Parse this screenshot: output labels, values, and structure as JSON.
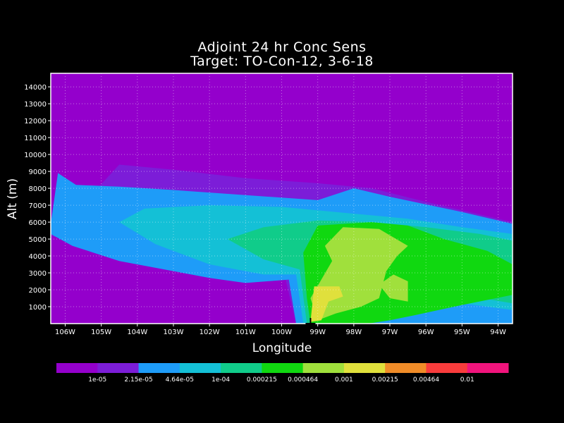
{
  "chart_data": {
    "type": "heatmap",
    "title": "Adjoint 24 hr Conc Sens",
    "subtitle": "Target: TO-Con-12, 3-6-18",
    "xlabel": "Longitude",
    "ylabel": "Alt (m)",
    "xlim": [
      -106.4,
      -93.6
    ],
    "ylim": [
      0,
      14800
    ],
    "grid": true,
    "x_ticks": [
      "106W",
      "105W",
      "104W",
      "103W",
      "102W",
      "101W",
      "100W",
      "99W",
      "98W",
      "97W",
      "96W",
      "95W",
      "94W"
    ],
    "y_ticks": [
      "1000",
      "2000",
      "3000",
      "4000",
      "5000",
      "6000",
      "7000",
      "8000",
      "9000",
      "10000",
      "11000",
      "12000",
      "13000",
      "14000"
    ],
    "target_marker": {
      "lon": -99.2,
      "alt": 0
    },
    "colorbar": {
      "colors": [
        "#9400CC",
        "#7C1DD8",
        "#1E9CF8",
        "#14C0D6",
        "#10CC8A",
        "#10D810",
        "#A0E03C",
        "#E0E03C",
        "#F08C28",
        "#F83C3C",
        "#F0147C"
      ],
      "labels": [
        "1e-05",
        "2.15e-05",
        "4.64e-05",
        "1e-04",
        "0.000215",
        "0.000464",
        "0.001",
        "0.00215",
        "0.00464",
        "0.01"
      ]
    },
    "contours": [
      {
        "level": "1e-05",
        "color": "#7C1DD8",
        "polygon": [
          [
            -106.4,
            5800
          ],
          [
            -105.8,
            6400
          ],
          [
            -104.5,
            9400
          ],
          [
            -103,
            9100
          ],
          [
            -101,
            8600
          ],
          [
            -99,
            8300
          ],
          [
            -97.5,
            8000
          ],
          [
            -96,
            7200
          ],
          [
            -95,
            6700
          ],
          [
            -94,
            6200
          ],
          [
            -93.6,
            6000
          ],
          [
            -93.6,
            0
          ],
          [
            -99.6,
            0
          ],
          [
            -99.9,
            2700
          ],
          [
            -101,
            2600
          ],
          [
            -102,
            2900
          ],
          [
            -103,
            3200
          ],
          [
            -104.5,
            3900
          ],
          [
            -105.5,
            4600
          ],
          [
            -106.4,
            5200
          ]
        ]
      },
      {
        "level": "2.15e-05",
        "color": "#1E9CF8",
        "polygon": [
          [
            -106.4,
            5900
          ],
          [
            -106.2,
            8900
          ],
          [
            -105.7,
            8200
          ],
          [
            -104.5,
            8100
          ],
          [
            -103,
            7900
          ],
          [
            -101,
            7600
          ],
          [
            -99,
            7300
          ],
          [
            -98,
            8000
          ],
          [
            -97,
            7500
          ],
          [
            -95,
            6600
          ],
          [
            -93.6,
            5900
          ],
          [
            -93.6,
            0
          ],
          [
            -99.6,
            0
          ],
          [
            -99.8,
            2600
          ],
          [
            -101,
            2400
          ],
          [
            -102,
            2700
          ],
          [
            -103,
            3100
          ],
          [
            -104.5,
            3700
          ],
          [
            -105.8,
            4600
          ],
          [
            -106.4,
            5300
          ]
        ]
      },
      {
        "level": "4.64e-05",
        "color": "#14C0D6",
        "polygon": [
          [
            -104.5,
            6000
          ],
          [
            -103.8,
            6800
          ],
          [
            -102,
            7000
          ],
          [
            -100,
            6900
          ],
          [
            -98,
            6500
          ],
          [
            -96.5,
            6200
          ],
          [
            -95,
            5700
          ],
          [
            -93.6,
            5300
          ],
          [
            -93.6,
            800
          ],
          [
            -95,
            1200
          ],
          [
            -96.5,
            1100
          ],
          [
            -98,
            300
          ],
          [
            -99.4,
            0
          ],
          [
            -99.6,
            2900
          ],
          [
            -100.5,
            2900
          ],
          [
            -102,
            3500
          ],
          [
            -103.5,
            4700
          ]
        ]
      },
      {
        "level": "1e-04",
        "color": "#10CC8A",
        "polygon": [
          [
            -101.5,
            5000
          ],
          [
            -100.5,
            5700
          ],
          [
            -99,
            6100
          ],
          [
            -97.5,
            6000
          ],
          [
            -96,
            5700
          ],
          [
            -94.5,
            5300
          ],
          [
            -93.6,
            4900
          ],
          [
            -93.6,
            1200
          ],
          [
            -95,
            1700
          ],
          [
            -96.5,
            1500
          ],
          [
            -97.5,
            800
          ],
          [
            -98.5,
            0
          ],
          [
            -99.3,
            0
          ],
          [
            -99.5,
            3200
          ],
          [
            -100.5,
            3800
          ]
        ]
      },
      {
        "level": "0.000215",
        "color": "#10D810",
        "polygon": [
          [
            -99.4,
            4200
          ],
          [
            -99,
            5800
          ],
          [
            -97.5,
            6000
          ],
          [
            -96.5,
            5800
          ],
          [
            -95.5,
            5000
          ],
          [
            -94.3,
            4300
          ],
          [
            -93.6,
            3500
          ],
          [
            -93.6,
            1700
          ],
          [
            -95,
            1100
          ],
          [
            -96.3,
            500
          ],
          [
            -97,
            200
          ],
          [
            -97.6,
            0
          ],
          [
            -99.2,
            0
          ],
          [
            -99.3,
            1500
          ]
        ]
      },
      {
        "level": "0.000464",
        "color": "#A0E03C",
        "polygon": [
          [
            -98.3,
            5700
          ],
          [
            -97.3,
            5600
          ],
          [
            -96.5,
            4600
          ],
          [
            -96.8,
            4000
          ],
          [
            -97.1,
            3100
          ],
          [
            -97.3,
            1500
          ],
          [
            -97.8,
            1000
          ],
          [
            -98.5,
            600
          ],
          [
            -99,
            200
          ],
          [
            -99.2,
            1500
          ],
          [
            -98.6,
            3700
          ],
          [
            -98.8,
            4600
          ]
        ]
      },
      {
        "level": "0.000464",
        "color": "#A0E03C",
        "polygon": [
          [
            -96.9,
            2900
          ],
          [
            -96.5,
            2500
          ],
          [
            -96.5,
            1300
          ],
          [
            -97,
            1500
          ],
          [
            -97.3,
            2300
          ]
        ]
      },
      {
        "level": "0.001",
        "color": "#E0E03C",
        "polygon": [
          [
            -99.1,
            2200
          ],
          [
            -98.4,
            2200
          ],
          [
            -98.3,
            1600
          ],
          [
            -98.7,
            1300
          ],
          [
            -98.9,
            200
          ],
          [
            -99.2,
            100
          ]
        ]
      }
    ]
  }
}
